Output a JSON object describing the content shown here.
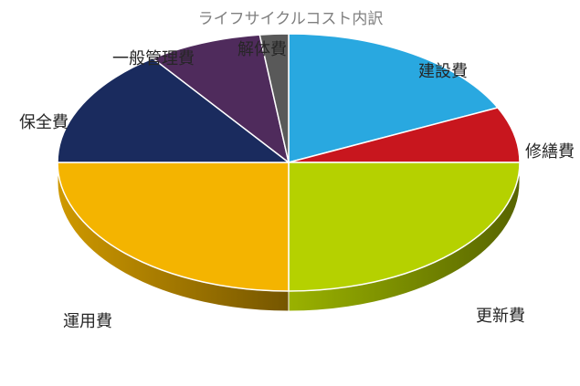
{
  "chart_data": {
    "type": "pie",
    "style": "3d",
    "title": "ライフサイクルコスト内訳",
    "categories": [
      "建設費",
      "修繕費",
      "更新費",
      "運用費",
      "保全費",
      "一般管理費",
      "解体費"
    ],
    "values": [
      18,
      7,
      25,
      25,
      15,
      8,
      2
    ],
    "unit": "%",
    "colors": [
      "#29A8E0",
      "#C8161E",
      "#B5D100",
      "#F4B400",
      "#1A2B5E",
      "#4F2B5C",
      "#595959"
    ],
    "legend": "none",
    "data_labels": "category names outside slices"
  }
}
